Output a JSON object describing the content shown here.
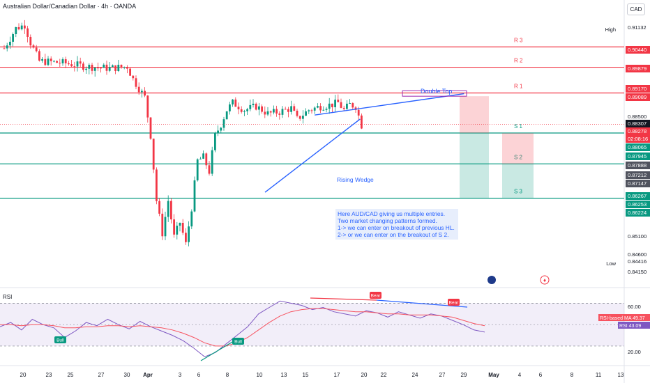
{
  "title": "Australian Dollar/Canadian Dollar · 4h · OANDA",
  "currency_button": "CAD",
  "colors": {
    "up": "#089981",
    "down": "#f23645",
    "resistance": "#f23645",
    "support": "#089981",
    "annotation": "#2962ff",
    "rsi": "#7e57c2",
    "rsi_ma": "#f7525f"
  },
  "chart_data": [
    {
      "type": "candlestick",
      "symbol": "AUD/CAD",
      "timeframe": "4h",
      "x_tick_labels": [
        "20",
        "23",
        "25",
        "27",
        "30",
        "Apr",
        "3",
        "6",
        "8",
        "10",
        "13",
        "15",
        "17",
        "20",
        "22",
        "24",
        "27",
        "29",
        "May",
        "4",
        "6",
        "8",
        "11",
        "13"
      ],
      "price_axis_labels": [
        "0.91132",
        "0.90440",
        "0.89879",
        "0.89170",
        "0.89089",
        "0.88500",
        "0.88307",
        "0.88278",
        "02:08:16",
        "0.88065",
        "0.87945",
        "0.87888",
        "0.87212",
        "0.87147",
        "0.86267",
        "0.86253",
        "0.86224",
        "0.85100",
        "0.84600",
        "0.84416",
        "0.84150"
      ],
      "high_label": "High",
      "high_value": "0.91132",
      "low_label": "Low",
      "low_value": "0.84416",
      "ylim": [
        0.8405,
        0.9135
      ],
      "price_path": [
        [
          0,
          0.904
        ],
        [
          4,
          0.9095
        ],
        [
          7,
          0.9105
        ],
        [
          9,
          0.9055
        ],
        [
          12,
          0.9005
        ],
        [
          20,
          0.9
        ],
        [
          28,
          0.899
        ],
        [
          36,
          0.8985
        ],
        [
          42,
          0.899
        ],
        [
          44,
          0.8955
        ],
        [
          46,
          0.893
        ],
        [
          48,
          0.8905
        ],
        [
          50,
          0.88
        ],
        [
          52,
          0.862
        ],
        [
          54,
          0.853
        ],
        [
          56,
          0.862
        ],
        [
          58,
          0.852
        ],
        [
          60,
          0.856
        ],
        [
          62,
          0.85
        ],
        [
          64,
          0.86
        ],
        [
          66,
          0.873
        ],
        [
          68,
          0.874
        ],
        [
          70,
          0.87
        ],
        [
          72,
          0.88
        ],
        [
          74,
          0.883
        ],
        [
          76,
          0.887
        ],
        [
          78,
          0.889
        ],
        [
          82,
          0.887
        ],
        [
          86,
          0.888
        ],
        [
          90,
          0.886
        ],
        [
          94,
          0.8865
        ],
        [
          98,
          0.8875
        ],
        [
          100,
          0.8845
        ],
        [
          104,
          0.887
        ],
        [
          108,
          0.888
        ],
        [
          112,
          0.8885
        ],
        [
          114,
          0.889
        ],
        [
          116,
          0.887
        ],
        [
          118,
          0.8885
        ],
        [
          120,
          0.888
        ],
        [
          122,
          0.8828
        ]
      ],
      "levels": [
        {
          "label": "R 3",
          "price": 0.9044,
          "tag": "0.90440",
          "role": "resistance"
        },
        {
          "label": "R 2",
          "price": 0.89879,
          "tag": "0.89879",
          "role": "resistance"
        },
        {
          "label": "R 1",
          "price": 0.8917,
          "tag": "0.89170",
          "role": "resistance"
        },
        {
          "label": "S 1",
          "price": 0.88065,
          "tag": "0.88065",
          "role": "support"
        },
        {
          "label": "S 2",
          "price": 0.87212,
          "tag": "0.87212",
          "role": "support"
        },
        {
          "label": "S 3",
          "price": 0.86267,
          "tag": "0.86267",
          "role": "support"
        }
      ],
      "annotations": [
        {
          "text": "Double Top",
          "kind": "pattern"
        },
        {
          "text": "Rising Wedge",
          "kind": "pattern"
        }
      ],
      "note_lines": [
        "Here AUD/CAD giving us multiple entries.",
        "Two market changing patterns formed.",
        "1-> we can enter on breakout of previous HL.",
        "2-> or we can enter on the breakout of S 2."
      ],
      "current_price": "0.88307",
      "countdown": "02:08:16"
    },
    {
      "type": "line",
      "title": "RSI",
      "series": [
        {
          "name": "RSI",
          "value_label": "43.09",
          "values": [
            48,
            52,
            45,
            55,
            50,
            47,
            38,
            44,
            52,
            49,
            55,
            50,
            46,
            53,
            48,
            44,
            40,
            35,
            28,
            20,
            24,
            32,
            40,
            48,
            60,
            66,
            72,
            70,
            68,
            64,
            66,
            62,
            60,
            58,
            63,
            61,
            57,
            62,
            59,
            56,
            60,
            58,
            54,
            50,
            45,
            43
          ]
        },
        {
          "name": "RSI-based MA",
          "value_label": "49.37",
          "values": [
            50,
            50,
            49,
            50,
            50,
            49,
            47,
            47,
            48,
            48,
            49,
            49,
            48,
            49,
            48,
            47,
            45,
            42,
            38,
            33,
            30,
            30,
            33,
            38,
            45,
            52,
            58,
            62,
            64,
            65,
            65,
            64,
            63,
            62,
            62,
            61,
            60,
            60,
            59,
            59,
            59,
            58,
            57,
            54,
            51,
            49
          ]
        }
      ],
      "y_tick_labels": [
        "60.00",
        "20.00"
      ],
      "ylim": [
        15,
        80
      ],
      "markers": [
        "Bull",
        "Bull",
        "Bear",
        "Bear"
      ]
    }
  ]
}
